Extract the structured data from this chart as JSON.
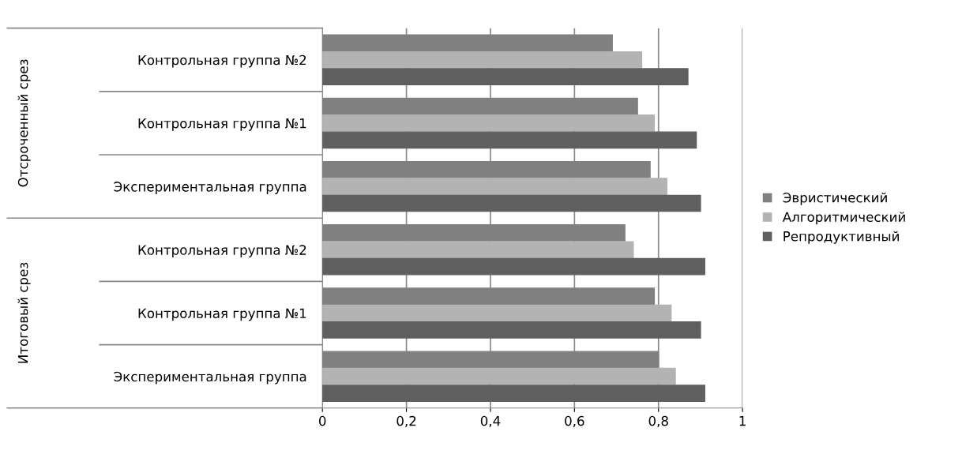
{
  "chart_data": {
    "type": "bar",
    "orientation": "horizontal",
    "categories": [
      "Контрольная группа №2",
      "Контрольная группа №1",
      "Экспериментальная группа",
      "Контрольная группа №2",
      "Контрольная группа №1",
      "Экспериментальная группа"
    ],
    "annotations": [
      "Отсроченный срез",
      "Итоговый срез"
    ],
    "series": [
      {
        "name": "Эвристический",
        "color": "#808080",
        "values": [
          0.69,
          0.75,
          0.78,
          0.72,
          0.79,
          0.8
        ]
      },
      {
        "name": "Алгоритмический",
        "color": "#b3b3b3",
        "values": [
          0.76,
          0.79,
          0.82,
          0.74,
          0.83,
          0.84
        ]
      },
      {
        "name": "Репродуктивный",
        "color": "#5f5f5f",
        "values": [
          0.87,
          0.89,
          0.9,
          0.91,
          0.9,
          0.91
        ]
      }
    ],
    "xlim": [
      0,
      1
    ],
    "xticks": [
      0,
      {
        "value": 0.2,
        "label": "0,2"
      },
      {
        "value": 0.4,
        "label": "0,4"
      },
      {
        "value": 0.6,
        "label": "0,6"
      },
      {
        "value": 0.8,
        "label": "0,8"
      },
      1
    ],
    "grid": "x",
    "legend": "right"
  }
}
